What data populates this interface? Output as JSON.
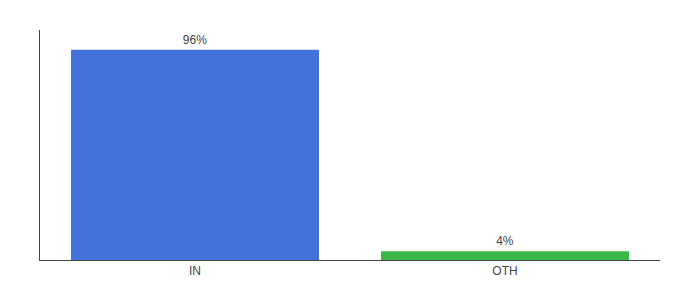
{
  "chart_data": {
    "type": "bar",
    "categories": [
      "IN",
      "OTH"
    ],
    "values": [
      96,
      4
    ],
    "value_labels": [
      "96%",
      "4%"
    ],
    "colors": [
      "#4472db",
      "#3cb84a"
    ],
    "ylim": [
      0,
      105
    ],
    "data_labels": true,
    "tick_labels": "x",
    "grid": false
  }
}
